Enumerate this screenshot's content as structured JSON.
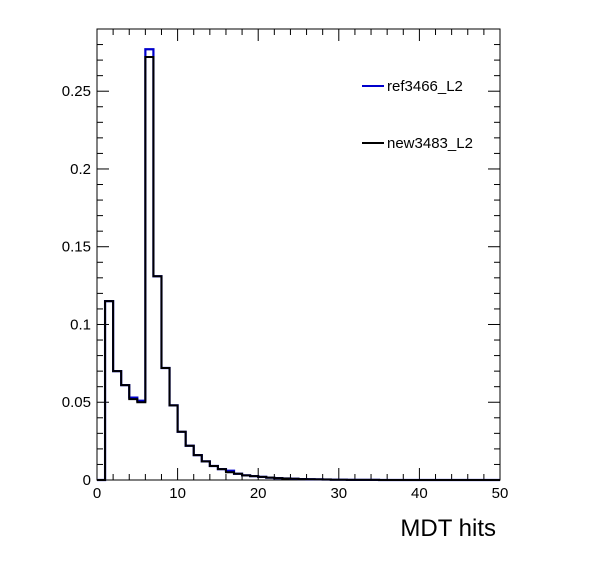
{
  "chart_data": {
    "type": "line",
    "title": "",
    "xlabel": "MDT hits",
    "ylabel": "",
    "xlim": [
      0,
      50
    ],
    "ylim": [
      0,
      0.29
    ],
    "x_ticks": [
      0,
      10,
      20,
      30,
      40,
      50
    ],
    "x_tick_labels": [
      "0",
      "10",
      "20",
      "30",
      "40",
      "50"
    ],
    "y_ticks": [
      0,
      0.05,
      0.1,
      0.15,
      0.2,
      0.25
    ],
    "y_tick_labels": [
      "0",
      "0.05",
      "0.1",
      "0.15",
      "0.2",
      "0.25"
    ],
    "bin_edges": [
      0,
      1,
      2,
      3,
      4,
      5,
      6,
      7,
      8,
      9,
      10,
      11,
      12,
      13,
      14,
      15,
      16,
      17,
      18,
      19,
      20,
      21,
      22,
      23,
      24,
      25,
      26,
      27,
      28,
      29,
      30,
      31,
      32,
      33,
      34,
      35,
      36,
      37,
      38,
      39,
      40,
      41,
      42,
      43,
      44,
      45,
      46,
      47,
      48,
      49,
      50
    ],
    "legend_position": "top-right",
    "series": [
      {
        "name": "ref3466_L2",
        "color": "#0000cc",
        "values": [
          0.0,
          0.115,
          0.07,
          0.061,
          0.053,
          0.051,
          0.277,
          0.131,
          0.072,
          0.048,
          0.031,
          0.022,
          0.016,
          0.012,
          0.009,
          0.007,
          0.006,
          0.004,
          0.003,
          0.0025,
          0.002,
          0.0015,
          0.0012,
          0.001,
          0.0008,
          0.0006,
          0.0005,
          0.0004,
          0.0003,
          0.0002,
          0.0002,
          0.0001,
          0.0001,
          0.0001,
          0.0001,
          0.0,
          0.0,
          0.0,
          0.0,
          0.0,
          0.0,
          0.0,
          0.0,
          0.0,
          0.0,
          0.0,
          0.0,
          0.0,
          0.0,
          0.0
        ]
      },
      {
        "name": "new3483_L2",
        "color": "#000000",
        "values": [
          0.0,
          0.115,
          0.07,
          0.061,
          0.052,
          0.05,
          0.272,
          0.131,
          0.072,
          0.048,
          0.031,
          0.022,
          0.016,
          0.012,
          0.009,
          0.007,
          0.005,
          0.004,
          0.003,
          0.0025,
          0.002,
          0.0015,
          0.0012,
          0.001,
          0.0008,
          0.0006,
          0.0005,
          0.0004,
          0.0003,
          0.0002,
          0.0002,
          0.0001,
          0.0001,
          0.0001,
          0.0001,
          0.0,
          0.0,
          0.0,
          0.0,
          0.0,
          0.0,
          0.0,
          0.0,
          0.0,
          0.0,
          0.0,
          0.0,
          0.0,
          0.0,
          0.0
        ]
      }
    ]
  }
}
